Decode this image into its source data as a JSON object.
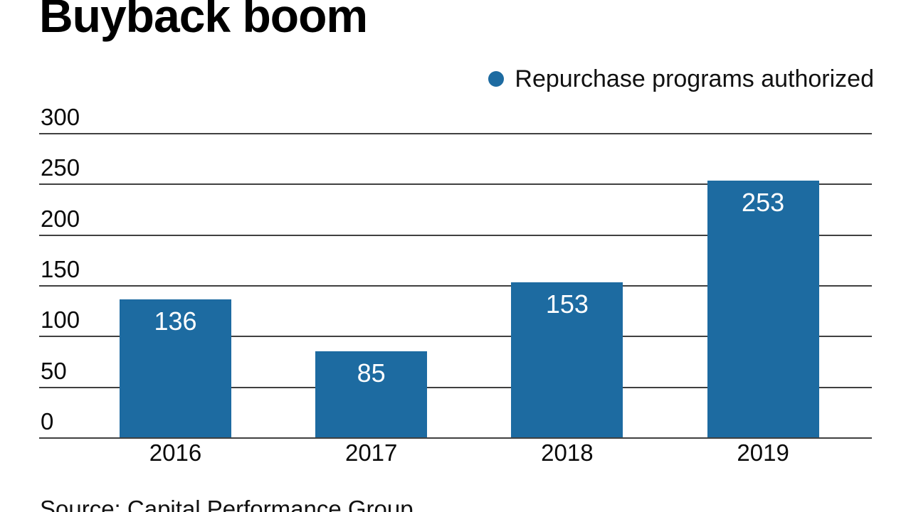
{
  "chart_data": {
    "type": "bar",
    "title": "Buyback boom",
    "legend": {
      "label": "Repurchase programs authorized",
      "position": "top-right"
    },
    "categories": [
      "2016",
      "2017",
      "2018",
      "2019"
    ],
    "series": [
      {
        "name": "Repurchase programs authorized",
        "values": [
          136,
          85,
          153,
          253
        ]
      }
    ],
    "value_labels": [
      "136",
      "85",
      "153",
      "253"
    ],
    "ylim": [
      0,
      300
    ],
    "yticks": [
      0,
      50,
      100,
      150,
      200,
      250,
      300
    ],
    "grid": "horizontal",
    "bar_color": "#1d6ba1",
    "value_label_color": "#ffffff",
    "gridline_color": "#404040"
  },
  "source": "Source: Capital Performance Group"
}
